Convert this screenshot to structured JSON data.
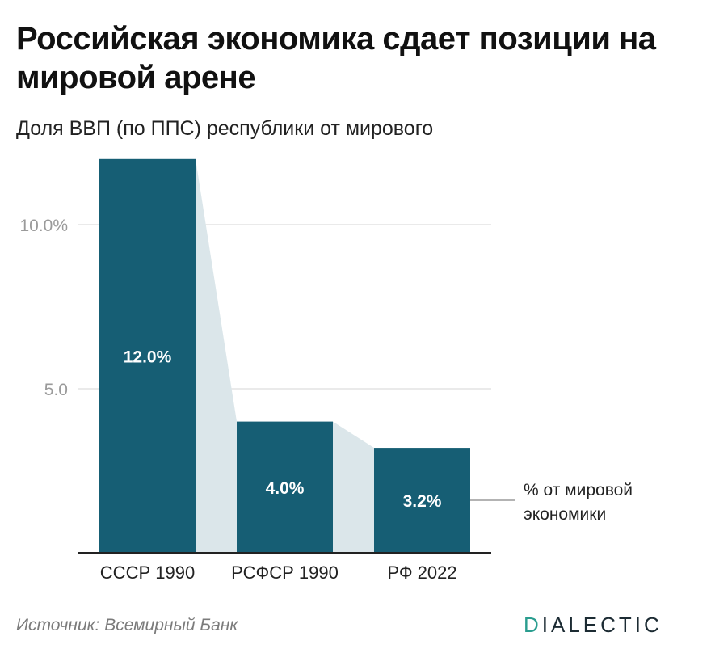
{
  "title": "Российская экономика сдает позиции на мировой арене",
  "subtitle": "Доля ВВП (по ППС) республики от мирового",
  "source": "Источник: Всемирный Банк",
  "brand": {
    "first": "D",
    "rest": "IALECTIC"
  },
  "colors": {
    "bar": "#165e74",
    "connector": "#dbe6ea",
    "grid": "#e3e3e3",
    "tick": "#9a9a9a",
    "axis": "#222222"
  },
  "chart_data": {
    "type": "bar",
    "categories": [
      "СССР 1990",
      "РСФСР 1990",
      "РФ 2022"
    ],
    "series": [
      {
        "values": [
          12.0,
          4.0,
          3.2
        ]
      }
    ],
    "data_labels": [
      "12.0%",
      "4.0%",
      "3.2%"
    ],
    "y_ticks": [
      {
        "value": 5,
        "label": "5.0"
      },
      {
        "value": 10,
        "label": "10.0%"
      }
    ],
    "ylim": [
      0,
      12
    ],
    "grid": true,
    "annotation": {
      "lines": [
        "% от мировой",
        "экономики"
      ],
      "target": "РФ 2022"
    }
  }
}
